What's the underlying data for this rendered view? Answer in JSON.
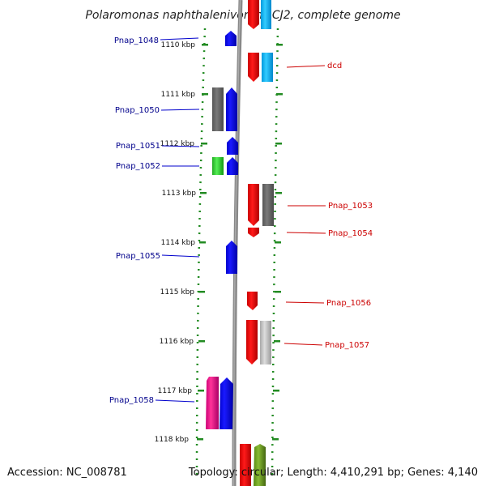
{
  "title": "Polaromonas naphthalenivorans CJ2, complete genome",
  "footer": {
    "accession": "Accession: NC_008781",
    "topology": "Topology: circular; Length: 4,410,291 bp; Genes: 4,140"
  },
  "colors": {
    "backbone": "#808080",
    "tick": "#228b22",
    "left_label": "#00008b",
    "right_label": "#cc0000"
  },
  "ticks": [
    "1110 kbp",
    "1111 kbp",
    "1112 kbp",
    "1113 kbp",
    "1114 kbp",
    "1115 kbp",
    "1116 kbp",
    "1117 kbp",
    "1118 kbp"
  ],
  "left_labels": [
    "Pnap_1048",
    "Pnap_1050",
    "Pnap_1051",
    "Pnap_1052",
    "Pnap_1055",
    "Pnap_1058"
  ],
  "right_labels": [
    "dcd",
    "Pnap_1053",
    "Pnap_1054",
    "Pnap_1056",
    "Pnap_1057"
  ]
}
